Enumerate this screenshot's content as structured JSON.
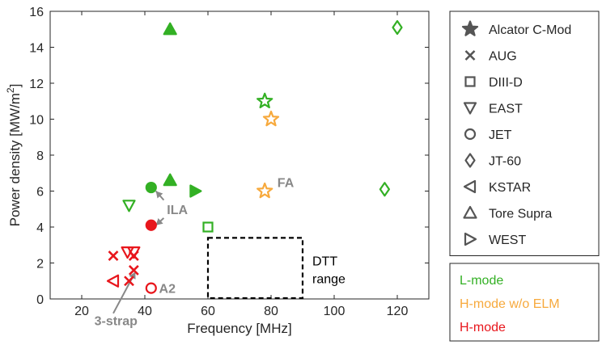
{
  "chart_data": {
    "type": "scatter",
    "xlabel": "Frequency [MHz]",
    "ylabel_main": "Power density [MW/m",
    "ylabel_sup": "2",
    "ylabel_end": "]",
    "xlim": [
      10,
      130
    ],
    "ylim": [
      0,
      16
    ],
    "xticks": [
      20,
      40,
      60,
      80,
      100,
      120
    ],
    "yticks": [
      0,
      2,
      4,
      6,
      8,
      10,
      12,
      14,
      16
    ],
    "grid": false,
    "colors": {
      "L-mode": "#33b024",
      "H-mode w/o ELM": "#f7a93c",
      "H-mode": "#e8161c",
      "annotation": "#888888"
    },
    "legend_devices": [
      {
        "marker": "star",
        "label": "Alcator C-Mod"
      },
      {
        "marker": "x",
        "label": "AUG"
      },
      {
        "marker": "square",
        "label": "DIII-D"
      },
      {
        "marker": "triangle-down",
        "label": "EAST"
      },
      {
        "marker": "circle",
        "label": "JET"
      },
      {
        "marker": "diamond",
        "label": "JT-60"
      },
      {
        "marker": "triangle-left",
        "label": "KSTAR"
      },
      {
        "marker": "triangle-up",
        "label": "Tore Supra"
      },
      {
        "marker": "triangle-right",
        "label": "WEST"
      }
    ],
    "legend_modes": [
      {
        "label": "L-mode",
        "mode": "L-mode"
      },
      {
        "label": "H-mode w/o ELM",
        "mode": "H-mode w/o ELM"
      },
      {
        "label": "H-mode",
        "mode": "H-mode"
      }
    ],
    "points": [
      {
        "device": "Tore Supra",
        "marker": "triangle-up",
        "mode": "L-mode",
        "x": 48,
        "y": 15,
        "filled": true
      },
      {
        "device": "JT-60",
        "marker": "diamond",
        "mode": "L-mode",
        "x": 120,
        "y": 15.1,
        "filled": false
      },
      {
        "device": "Alcator C-Mod",
        "marker": "star",
        "mode": "L-mode",
        "x": 78,
        "y": 11,
        "filled": false
      },
      {
        "device": "Alcator C-Mod",
        "marker": "star",
        "mode": "H-mode w/o ELM",
        "x": 80,
        "y": 10,
        "filled": false
      },
      {
        "device": "Alcator C-Mod",
        "marker": "star",
        "mode": "H-mode w/o ELM",
        "x": 78,
        "y": 6,
        "filled": false
      },
      {
        "device": "Tore Supra",
        "marker": "triangle-up",
        "mode": "L-mode",
        "x": 48,
        "y": 6.6,
        "filled": true
      },
      {
        "device": "JET",
        "marker": "circle",
        "mode": "L-mode",
        "x": 42,
        "y": 6.2,
        "filled": true
      },
      {
        "device": "WEST",
        "marker": "triangle-right",
        "mode": "L-mode",
        "x": 56,
        "y": 6.0,
        "filled": true
      },
      {
        "device": "JT-60",
        "marker": "diamond",
        "mode": "L-mode",
        "x": 116,
        "y": 6.1,
        "filled": false
      },
      {
        "device": "EAST",
        "marker": "triangle-down",
        "mode": "L-mode",
        "x": 35,
        "y": 5.2,
        "filled": false
      },
      {
        "device": "JET",
        "marker": "circle",
        "mode": "H-mode",
        "x": 42,
        "y": 4.1,
        "filled": true
      },
      {
        "device": "DIII-D",
        "marker": "square",
        "mode": "L-mode",
        "x": 60,
        "y": 4.0,
        "filled": false
      },
      {
        "device": "EAST",
        "marker": "triangle-down",
        "mode": "H-mode",
        "x": 34.5,
        "y": 2.6,
        "filled": false
      },
      {
        "device": "EAST",
        "marker": "triangle-down",
        "mode": "H-mode",
        "x": 36.5,
        "y": 2.6,
        "filled": false
      },
      {
        "device": "AUG",
        "marker": "x",
        "mode": "H-mode",
        "x": 30,
        "y": 2.4,
        "filled": false
      },
      {
        "device": "AUG",
        "marker": "x",
        "mode": "H-mode",
        "x": 36.5,
        "y": 2.4,
        "filled": false
      },
      {
        "device": "AUG",
        "marker": "x",
        "mode": "H-mode",
        "x": 36.5,
        "y": 1.6,
        "filled": false
      },
      {
        "device": "KSTAR",
        "marker": "triangle-left",
        "mode": "H-mode",
        "x": 30,
        "y": 1.0,
        "filled": false
      },
      {
        "device": "AUG",
        "marker": "x",
        "mode": "H-mode",
        "x": 35,
        "y": 1.0,
        "filled": false
      },
      {
        "device": "JET",
        "marker": "circle",
        "mode": "H-mode",
        "x": 42,
        "y": 0.6,
        "filled": false
      }
    ],
    "dtt_box": {
      "x": [
        60,
        90
      ],
      "y": [
        0,
        3.4
      ],
      "label_line1": "DTT",
      "label_line2": "range"
    },
    "annotations": [
      {
        "text": "FA",
        "x": 82,
        "y": 6.5,
        "color": "annotation"
      },
      {
        "text": "ILA",
        "x": 47,
        "y": 5.0,
        "color": "annotation"
      },
      {
        "text": "A2",
        "x": 44.5,
        "y": 0.6,
        "color": "annotation"
      },
      {
        "text": "3-strap",
        "x": 24,
        "y": -1.2,
        "color": "annotation"
      }
    ],
    "arrows": [
      {
        "from": [
          46,
          5.5
        ],
        "to": [
          43.5,
          6.0
        ]
      },
      {
        "from": [
          46,
          4.5
        ],
        "to": [
          43.5,
          4.1
        ]
      },
      {
        "from": [
          30,
          -0.8
        ],
        "to": [
          37,
          1.5
        ]
      }
    ]
  }
}
